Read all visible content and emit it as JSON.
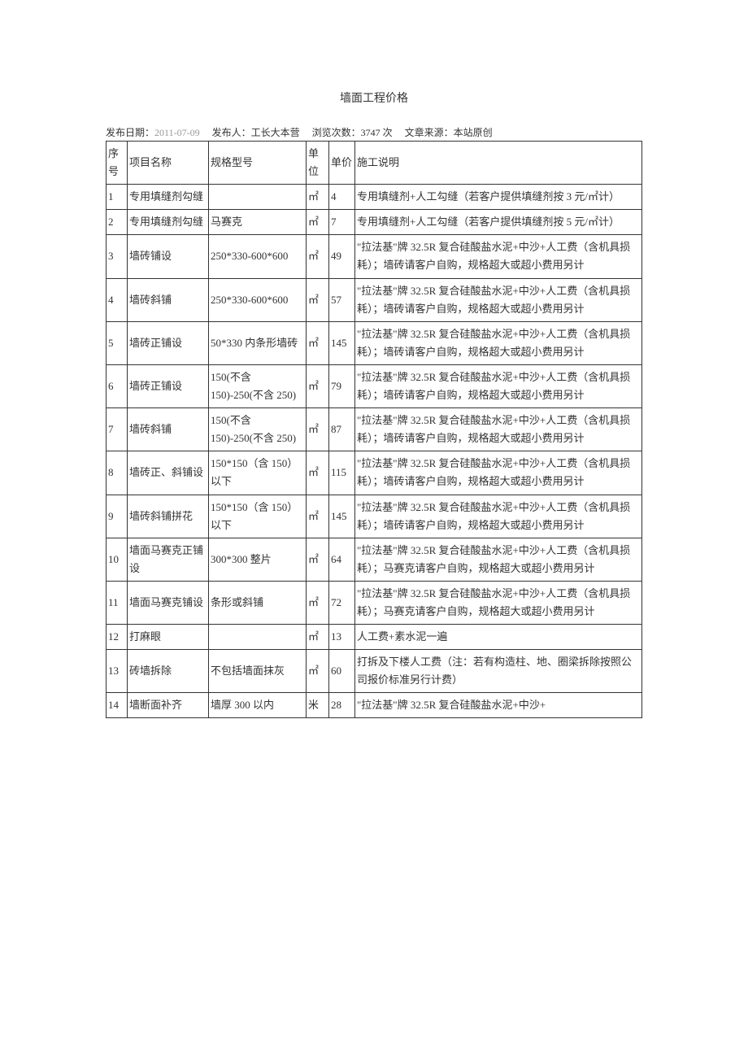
{
  "title": "墙面工程价格",
  "meta": {
    "date_label": "发布日期：",
    "date_value": "2011-07-09",
    "publisher_label": "发布人：",
    "publisher_value": "工长大本营",
    "views_label": "浏览次数：",
    "views_value": "3747 次",
    "source_label": "文章来源：",
    "source_value": "本站原创"
  },
  "headers": {
    "seq": "序号",
    "name": "项目名称",
    "spec": "规格型号",
    "unit": "单位",
    "price": "单价",
    "desc": "施工说明"
  },
  "rows": [
    {
      "seq": "1",
      "name": "专用填缝剂勾缝",
      "spec": "",
      "unit": "㎡",
      "price": "4",
      "desc": "专用填缝剂+人工勾缝（若客户提供填缝剂按 3 元/㎡计）"
    },
    {
      "seq": "2",
      "name": "专用填缝剂勾缝",
      "spec": "马赛克",
      "unit": "㎡",
      "price": "7",
      "desc": "专用填缝剂+人工勾缝（若客户提供填缝剂按 5 元/㎡计）"
    },
    {
      "seq": "3",
      "name": "墙砖铺设",
      "spec": "250*330-600*600",
      "unit": "㎡",
      "price": "49",
      "desc": "\"拉法基\"牌 32.5R 复合硅酸盐水泥+中沙+人工费（含机具损耗）；墙砖请客户自购，规格超大或超小费用另计"
    },
    {
      "seq": "4",
      "name": "墙砖斜铺",
      "spec": "250*330-600*600",
      "unit": "㎡",
      "price": "57",
      "desc": "\"拉法基\"牌 32.5R 复合硅酸盐水泥+中沙+人工费（含机具损耗）；墙砖请客户自购，规格超大或超小费用另计"
    },
    {
      "seq": "5",
      "name": "墙砖正铺设",
      "spec": "50*330 内条形墙砖",
      "unit": "㎡",
      "price": "145",
      "desc": "\"拉法基\"牌 32.5R 复合硅酸盐水泥+中沙+人工费（含机具损耗）；墙砖请客户自购，规格超大或超小费用另计"
    },
    {
      "seq": "6",
      "name": "墙砖正铺设",
      "spec": "150(不含 150)-250(不含 250)",
      "unit": "㎡",
      "price": "79",
      "desc": "\"拉法基\"牌 32.5R 复合硅酸盐水泥+中沙+人工费（含机具损耗）；墙砖请客户自购，规格超大或超小费用另计"
    },
    {
      "seq": "7",
      "name": "墙砖斜铺",
      "spec": "150(不含 150)-250(不含 250)",
      "unit": "㎡",
      "price": "87",
      "desc": "\"拉法基\"牌 32.5R 复合硅酸盐水泥+中沙+人工费（含机具损耗）；墙砖请客户自购，规格超大或超小费用另计"
    },
    {
      "seq": "8",
      "name": "墙砖正、斜铺设",
      "spec": "150*150（含 150）以下",
      "unit": "㎡",
      "price": "115",
      "desc": "\"拉法基\"牌 32.5R 复合硅酸盐水泥+中沙+人工费（含机具损耗）；墙砖请客户自购，规格超大或超小费用另计"
    },
    {
      "seq": "9",
      "name": "墙砖斜铺拼花",
      "spec": "150*150（含 150）以下",
      "unit": "㎡",
      "price": "145",
      "desc": "\"拉法基\"牌 32.5R 复合硅酸盐水泥+中沙+人工费（含机具损耗）；墙砖请客户自购，规格超大或超小费用另计"
    },
    {
      "seq": "10",
      "name": "墙面马赛克正铺设",
      "spec": "300*300 整片",
      "unit": "㎡",
      "price": "64",
      "desc": "\"拉法基\"牌 32.5R 复合硅酸盐水泥+中沙+人工费（含机具损耗）；马赛克请客户自购，规格超大或超小费用另计"
    },
    {
      "seq": "11",
      "name": "墙面马赛克铺设",
      "spec": "条形或斜铺",
      "unit": "㎡",
      "price": "72",
      "desc": "\"拉法基\"牌 32.5R 复合硅酸盐水泥+中沙+人工费（含机具损耗）；马赛克请客户自购，规格超大或超小费用另计"
    },
    {
      "seq": "12",
      "name": "打麻眼",
      "spec": "",
      "unit": "㎡",
      "price": "13",
      "desc": "人工费+素水泥一遍"
    },
    {
      "seq": "13",
      "name": "砖墙拆除",
      "spec": "不包括墙面抹灰",
      "unit": "㎡",
      "price": "60",
      "desc": "打拆及下楼人工费（注：若有构造柱、地、圈梁拆除按照公司报价标准另行计费）"
    },
    {
      "seq": "14",
      "name": "墙断面补齐",
      "spec": "墙厚 300 以内",
      "unit": "米",
      "price": "28",
      "desc": "\"拉法基\"牌 32.5R 复合硅酸盐水泥+中沙+"
    }
  ]
}
